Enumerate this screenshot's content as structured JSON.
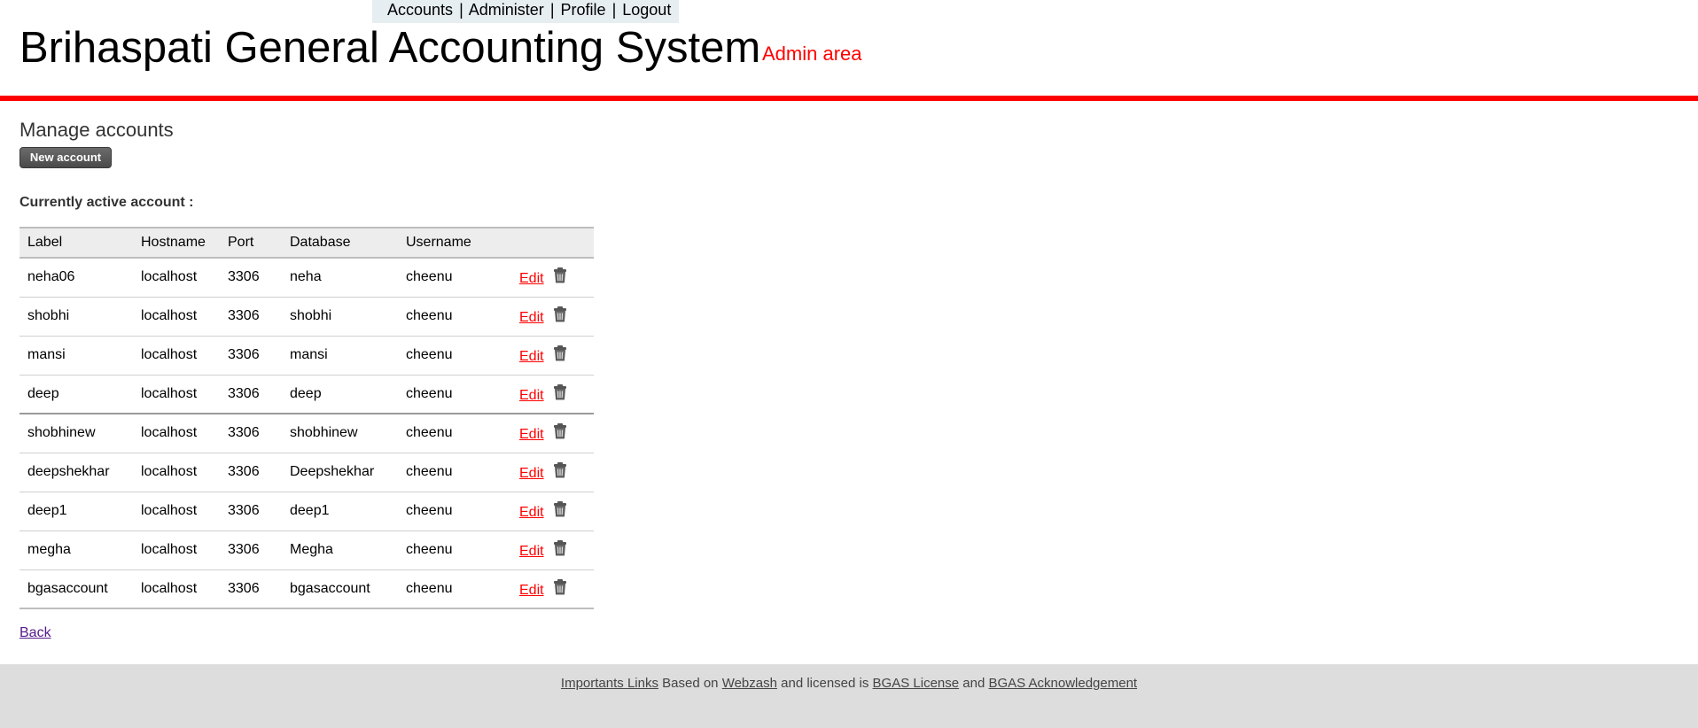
{
  "nav": {
    "items": [
      "Accounts",
      "Administer",
      "Profile",
      "Logout"
    ],
    "separator": "|"
  },
  "header": {
    "title": "Brihaspati General Accounting System",
    "subtitle": "Admin area"
  },
  "main": {
    "heading": "Manage accounts",
    "new_account_label": "New account",
    "active_account_label": "Currently active account :",
    "table": {
      "columns": [
        "Label",
        "Hostname",
        "Port",
        "Database",
        "Username"
      ],
      "rows": [
        {
          "label": "neha06",
          "hostname": "localhost",
          "port": "3306",
          "database": "neha",
          "username": "cheenu"
        },
        {
          "label": "shobhi",
          "hostname": "localhost",
          "port": "3306",
          "database": "shobhi",
          "username": "cheenu"
        },
        {
          "label": "mansi",
          "hostname": "localhost",
          "port": "3306",
          "database": "mansi",
          "username": "cheenu"
        },
        {
          "label": "deep",
          "hostname": "localhost",
          "port": "3306",
          "database": "deep",
          "username": "cheenu"
        },
        {
          "label": "shobhinew",
          "hostname": "localhost",
          "port": "3306",
          "database": "shobhinew",
          "username": "cheenu"
        },
        {
          "label": "deepshekhar",
          "hostname": "localhost",
          "port": "3306",
          "database": "Deepshekhar",
          "username": "cheenu"
        },
        {
          "label": "deep1",
          "hostname": "localhost",
          "port": "3306",
          "database": "deep1",
          "username": "cheenu"
        },
        {
          "label": "megha",
          "hostname": "localhost",
          "port": "3306",
          "database": "Megha",
          "username": "cheenu"
        },
        {
          "label": "bgasaccount",
          "hostname": "localhost",
          "port": "3306",
          "database": "bgasaccount",
          "username": "cheenu"
        }
      ],
      "edit_label": "Edit",
      "delete_icon": "trash-icon"
    },
    "back_label": "Back"
  },
  "footer": {
    "link1": "Importants Links",
    "text1": "Based on",
    "link2": "Webzash",
    "text2": "and licensed is",
    "link3": "BGAS License",
    "text3": "and",
    "link4": "BGAS Acknowledgement"
  },
  "colors": {
    "accent": "#ff0000",
    "nav_bg": "#e6eef2",
    "footer_bg": "#dddddd",
    "button_bg": "#555555"
  }
}
